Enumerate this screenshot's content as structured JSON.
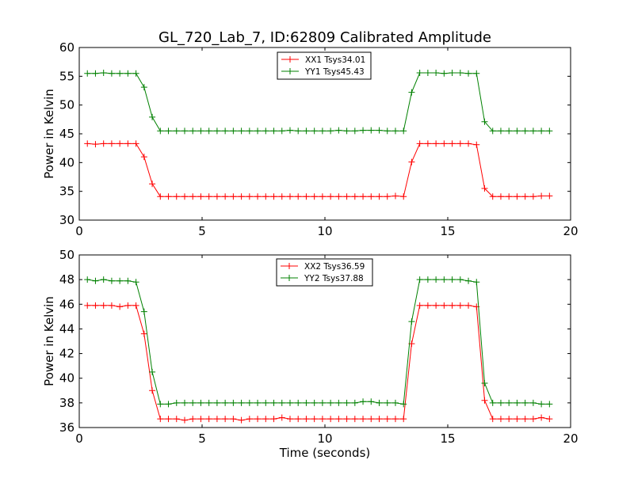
{
  "figure": {
    "title": "GL_720_Lab_7, ID:62809 Calibrated Amplitude"
  },
  "chart_data": [
    {
      "type": "line",
      "title": "GL_720_Lab_7, ID:62809 Calibrated Amplitude",
      "xlabel": "",
      "ylabel": "Power in Kelvin",
      "xlim": [
        0,
        20
      ],
      "ylim": [
        30,
        60
      ],
      "xticks": [
        0,
        5,
        10,
        15,
        20
      ],
      "yticks": [
        30,
        35,
        40,
        45,
        50,
        55,
        60
      ],
      "grid": false,
      "legend_position": "top-center",
      "marker": "plus",
      "x": [
        0.33,
        0.66,
        0.99,
        1.32,
        1.65,
        1.98,
        2.31,
        2.64,
        2.97,
        3.3,
        3.63,
        3.96,
        4.29,
        4.62,
        4.95,
        5.28,
        5.61,
        5.94,
        6.27,
        6.6,
        6.93,
        7.26,
        7.59,
        7.92,
        8.25,
        8.58,
        8.91,
        9.24,
        9.57,
        9.9,
        10.23,
        10.56,
        10.89,
        11.22,
        11.55,
        11.88,
        12.21,
        12.54,
        12.87,
        13.2,
        13.53,
        13.86,
        14.19,
        14.52,
        14.85,
        15.18,
        15.51,
        15.84,
        16.17,
        16.5,
        16.83,
        17.16,
        17.49,
        17.82,
        18.15,
        18.48,
        18.81,
        19.14
      ],
      "series": [
        {
          "name": "XX1 Tsys34.01",
          "color": "#ff0000",
          "values": [
            43.3,
            43.2,
            43.3,
            43.3,
            43.3,
            43.3,
            43.3,
            41.0,
            36.3,
            34.1,
            34.1,
            34.1,
            34.1,
            34.1,
            34.1,
            34.1,
            34.1,
            34.1,
            34.1,
            34.1,
            34.1,
            34.1,
            34.1,
            34.1,
            34.1,
            34.1,
            34.1,
            34.1,
            34.1,
            34.1,
            34.1,
            34.1,
            34.1,
            34.1,
            34.1,
            34.1,
            34.1,
            34.1,
            34.2,
            34.1,
            40.1,
            43.3,
            43.3,
            43.3,
            43.3,
            43.3,
            43.3,
            43.3,
            43.1,
            35.5,
            34.1,
            34.1,
            34.1,
            34.1,
            34.1,
            34.1,
            34.2,
            34.2
          ]
        },
        {
          "name": "YY1 Tsys45.43",
          "color": "#008000",
          "values": [
            55.5,
            55.5,
            55.6,
            55.5,
            55.5,
            55.5,
            55.5,
            53.1,
            47.9,
            45.5,
            45.5,
            45.5,
            45.5,
            45.5,
            45.5,
            45.5,
            45.5,
            45.5,
            45.5,
            45.5,
            45.5,
            45.5,
            45.5,
            45.5,
            45.5,
            45.6,
            45.5,
            45.5,
            45.5,
            45.5,
            45.5,
            45.6,
            45.5,
            45.5,
            45.6,
            45.6,
            45.6,
            45.5,
            45.5,
            45.5,
            52.2,
            55.6,
            55.6,
            55.6,
            55.5,
            55.6,
            55.6,
            55.5,
            55.5,
            47.1,
            45.5,
            45.5,
            45.5,
            45.5,
            45.5,
            45.5,
            45.5,
            45.5
          ]
        }
      ]
    },
    {
      "type": "line",
      "title": "",
      "xlabel": "Time (seconds)",
      "ylabel": "Power in Kelvin",
      "xlim": [
        0,
        20
      ],
      "ylim": [
        36,
        50
      ],
      "xticks": [
        0,
        5,
        10,
        15,
        20
      ],
      "yticks": [
        36,
        38,
        40,
        42,
        44,
        46,
        48,
        50
      ],
      "grid": false,
      "legend_position": "top-center",
      "marker": "plus",
      "x": [
        0.33,
        0.66,
        0.99,
        1.32,
        1.65,
        1.98,
        2.31,
        2.64,
        2.97,
        3.3,
        3.63,
        3.96,
        4.29,
        4.62,
        4.95,
        5.28,
        5.61,
        5.94,
        6.27,
        6.6,
        6.93,
        7.26,
        7.59,
        7.92,
        8.25,
        8.58,
        8.91,
        9.24,
        9.57,
        9.9,
        10.23,
        10.56,
        10.89,
        11.22,
        11.55,
        11.88,
        12.21,
        12.54,
        12.87,
        13.2,
        13.53,
        13.86,
        14.19,
        14.52,
        14.85,
        15.18,
        15.51,
        15.84,
        16.17,
        16.5,
        16.83,
        17.16,
        17.49,
        17.82,
        18.15,
        18.48,
        18.81,
        19.14
      ],
      "series": [
        {
          "name": "XX2 Tsys36.59",
          "color": "#ff0000",
          "values": [
            45.9,
            45.9,
            45.9,
            45.9,
            45.8,
            45.9,
            45.9,
            43.6,
            39.0,
            36.7,
            36.7,
            36.7,
            36.6,
            36.7,
            36.7,
            36.7,
            36.7,
            36.7,
            36.7,
            36.6,
            36.7,
            36.7,
            36.7,
            36.7,
            36.8,
            36.7,
            36.7,
            36.7,
            36.7,
            36.7,
            36.7,
            36.7,
            36.7,
            36.7,
            36.7,
            36.7,
            36.7,
            36.7,
            36.7,
            36.7,
            42.8,
            45.9,
            45.9,
            45.9,
            45.9,
            45.9,
            45.9,
            45.9,
            45.8,
            38.2,
            36.7,
            36.7,
            36.7,
            36.7,
            36.7,
            36.7,
            36.8,
            36.7
          ]
        },
        {
          "name": "YY2 Tsys37.88",
          "color": "#008000",
          "values": [
            48.0,
            47.9,
            48.0,
            47.9,
            47.9,
            47.9,
            47.8,
            45.4,
            40.5,
            37.9,
            37.9,
            38.0,
            38.0,
            38.0,
            38.0,
            38.0,
            38.0,
            38.0,
            38.0,
            38.0,
            38.0,
            38.0,
            38.0,
            38.0,
            38.0,
            38.0,
            38.0,
            38.0,
            38.0,
            38.0,
            38.0,
            38.0,
            38.0,
            38.0,
            38.1,
            38.1,
            38.0,
            38.0,
            38.0,
            37.9,
            44.6,
            48.0,
            48.0,
            48.0,
            48.0,
            48.0,
            48.0,
            47.9,
            47.8,
            39.6,
            38.0,
            38.0,
            38.0,
            38.0,
            38.0,
            38.0,
            37.9,
            37.9
          ]
        }
      ]
    }
  ]
}
